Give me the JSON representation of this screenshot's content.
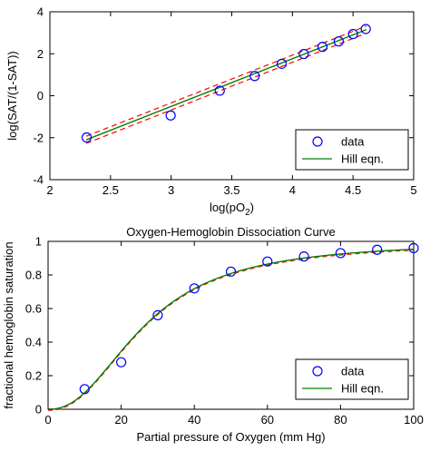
{
  "colors": {
    "marker": "#0000ff",
    "fit": "#008000",
    "confidence": "#ff0000"
  },
  "chart_data": [
    {
      "type": "scatter",
      "title": "",
      "xlabel_main": "log(pO",
      "xlabel_sub": "2",
      "xlabel_close": ")",
      "ylabel": "log(SAT/(1-SAT))",
      "xlim": [
        2,
        5
      ],
      "ylim": [
        -4,
        4
      ],
      "xticks": [
        "2",
        "2.5",
        "3",
        "3.5",
        "4",
        "4.5",
        "5"
      ],
      "yticks": [
        "-4",
        "-2",
        "0",
        "2",
        "4"
      ],
      "grid": false,
      "legend_position": "bottom-right",
      "legend": [
        "data",
        "Hill eqn."
      ],
      "x": [
        2.303,
        2.996,
        3.401,
        3.689,
        3.912,
        4.094,
        4.248,
        4.382,
        4.5,
        4.605
      ],
      "y": [
        -1.99,
        -0.94,
        0.24,
        0.94,
        1.52,
        1.99,
        2.33,
        2.59,
        2.94,
        3.18
      ],
      "fit_line": {
        "x": [
          2.3,
          4.61
        ],
        "y": [
          -2.1,
          3.15
        ]
      },
      "confidence_band_offset": 0.17
    },
    {
      "type": "scatter",
      "title": "Oxygen-Hemoglobin Dissociation Curve",
      "xlabel": "Partial pressure of Oxygen  (mm Hg)",
      "ylabel": "fractional hemoglobin saturation",
      "xlim": [
        0,
        100
      ],
      "ylim": [
        0,
        1
      ],
      "xticks": [
        "0",
        "20",
        "40",
        "60",
        "80",
        "100"
      ],
      "yticks": [
        "0",
        "0.2",
        "0.4",
        "0.6",
        "0.8",
        "1"
      ],
      "grid": false,
      "legend_position": "bottom-right",
      "legend": [
        "data",
        "Hill eqn."
      ],
      "x": [
        10,
        20,
        30,
        40,
        50,
        60,
        70,
        80,
        90,
        100
      ],
      "y": [
        0.12,
        0.28,
        0.56,
        0.72,
        0.82,
        0.88,
        0.91,
        0.93,
        0.95,
        0.96
      ],
      "hill_fit": {
        "n": 2.27,
        "p50": 26.5
      }
    }
  ]
}
